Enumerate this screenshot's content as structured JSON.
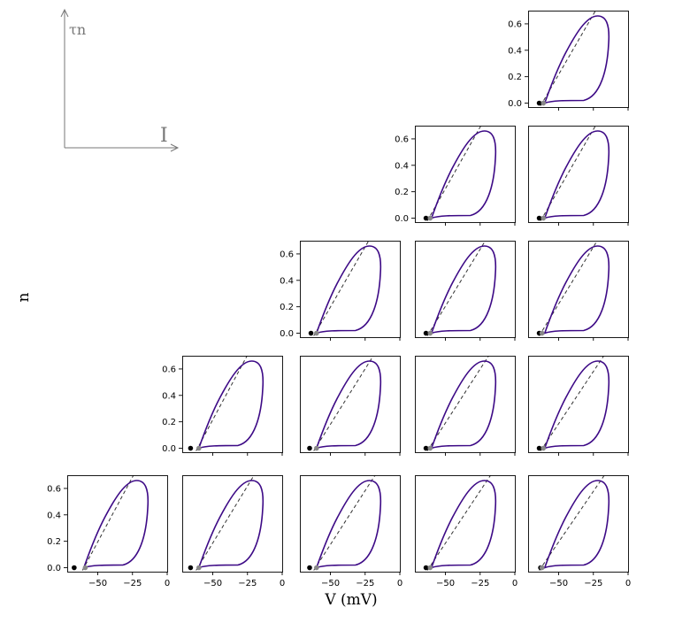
{
  "figure": {
    "ylabel": "n",
    "xlabel": "V (mV)",
    "inset": {
      "y_label": "τn",
      "x_label": "I"
    }
  },
  "colors": {
    "loop": "#3d0a86",
    "nullcline": "#333333",
    "rest_point": "#000000",
    "threshold_point": "#888888",
    "axes": "#000000"
  },
  "chart_data": {
    "type": "line",
    "layout": "lower-right triangular grid of phase-plane panels (5 rows; row k has k panels, right-aligned)",
    "xlabel": "V (mV)",
    "ylabel": "n",
    "xlim": [
      -72,
      0
    ],
    "ylim": [
      -0.03,
      0.7
    ],
    "xticks": [
      -50,
      -25,
      0
    ],
    "xtick_labels": [
      "−50",
      "−25",
      "0"
    ],
    "yticks": [
      0.0,
      0.2,
      0.4,
      0.6
    ],
    "ytick_labels": [
      "0.0",
      "0.2",
      "0.4",
      "0.6"
    ],
    "legend": "none",
    "grid": false,
    "loop_shape": {
      "left_v": -60,
      "left_n": 0.0,
      "bottom_v": -32,
      "bottom_n": 0.02,
      "right_v": -14,
      "right_n": 0.45,
      "top_v": -22,
      "top_n": 0.66
    },
    "panels": [
      {
        "row": 0,
        "col": 4,
        "rest_v": -64,
        "thresh_v": -61,
        "line_slope": 0.0185,
        "loop_shift": 0
      },
      {
        "row": 1,
        "col": 3,
        "rest_v": -64,
        "thresh_v": -61,
        "line_slope": 0.019,
        "loop_shift": 0
      },
      {
        "row": 1,
        "col": 4,
        "rest_v": -64,
        "thresh_v": -61,
        "line_slope": 0.0185,
        "loop_shift": 0
      },
      {
        "row": 2,
        "col": 2,
        "rest_v": -64,
        "thresh_v": -60,
        "line_slope": 0.0185,
        "loop_shift": 0
      },
      {
        "row": 2,
        "col": 3,
        "rest_v": -64,
        "thresh_v": -61,
        "line_slope": 0.0175,
        "loop_shift": 0
      },
      {
        "row": 2,
        "col": 4,
        "rest_v": -64,
        "thresh_v": -62,
        "line_slope": 0.0175,
        "loop_shift": 0
      },
      {
        "row": 3,
        "col": 1,
        "rest_v": -66,
        "thresh_v": -60,
        "line_slope": 0.02,
        "loop_shift": 0
      },
      {
        "row": 3,
        "col": 2,
        "rest_v": -65,
        "thresh_v": -60,
        "line_slope": 0.017,
        "loop_shift": 0
      },
      {
        "row": 3,
        "col": 3,
        "rest_v": -64,
        "thresh_v": -61,
        "line_slope": 0.0165,
        "loop_shift": 0
      },
      {
        "row": 3,
        "col": 4,
        "rest_v": -64,
        "thresh_v": -61,
        "line_slope": 0.016,
        "loop_shift": 0
      },
      {
        "row": 4,
        "col": 0,
        "rest_v": -67,
        "thresh_v": -59,
        "line_slope": 0.02,
        "loop_shift": 0
      },
      {
        "row": 4,
        "col": 1,
        "rest_v": -66,
        "thresh_v": -60,
        "line_slope": 0.0175,
        "loop_shift": 0
      },
      {
        "row": 4,
        "col": 2,
        "rest_v": -65,
        "thresh_v": -60,
        "line_slope": 0.0165,
        "loop_shift": 0
      },
      {
        "row": 4,
        "col": 3,
        "rest_v": -64,
        "thresh_v": -61,
        "line_slope": 0.016,
        "loop_shift": 0
      },
      {
        "row": 4,
        "col": 4,
        "rest_v": -63,
        "thresh_v": -62,
        "line_slope": 0.0155,
        "loop_shift": 0
      }
    ]
  }
}
